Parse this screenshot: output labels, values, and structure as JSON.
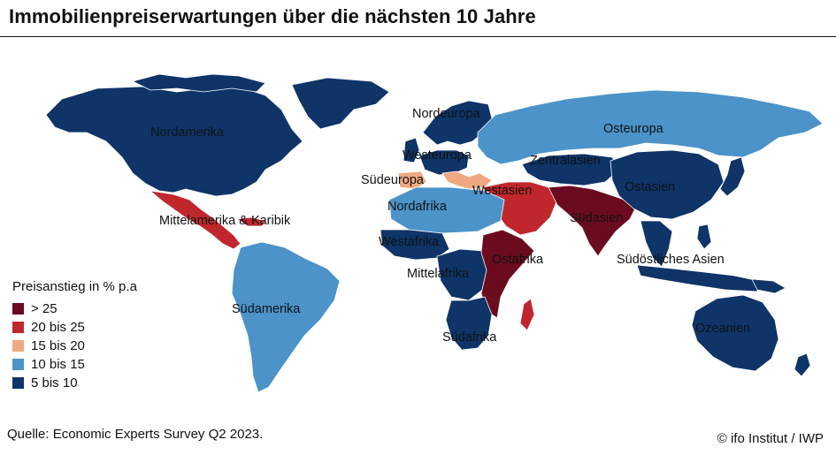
{
  "title": "Immobilienpreiserwartungen über die nächsten 10 Jahre",
  "legend": {
    "title": "Preisanstieg in % p.a",
    "items": [
      {
        "label": "> 25",
        "color": "#6b0b1f"
      },
      {
        "label": "20 bis 25",
        "color": "#c0272d"
      },
      {
        "label": "15 bis 20",
        "color": "#f0a882"
      },
      {
        "label": "10 bis 15",
        "color": "#4b93c9"
      },
      {
        "label": "5 bis 10",
        "color": "#0e3468"
      }
    ]
  },
  "regions": {
    "nordamerika": "Nordamerika",
    "mittelamerika": "Mittelamerika & Karibik",
    "suedamerika": "Südamerika",
    "nordeuropa": "Nordeuropa",
    "westeuropa": "Westeuropa",
    "suedeuropa": "Südeuropa",
    "osteuropa": "Osteuropa",
    "zentralasien": "Zentralasien",
    "westasien": "Westasien",
    "ostasien": "Ostasien",
    "suedasien": "Südasien",
    "suedostasien": "Südöstliches Asien",
    "nordafrika": "Nordafrika",
    "westafrika": "Westafrika",
    "mittelafrika": "Mittelafrika",
    "ostafrika": "Ostafrika",
    "suedafrika": "Südafrika",
    "ozeanien": "Ozeanien"
  },
  "source": "Quelle: Economic Experts Survey Q2 2023.",
  "copyright": "© ifo Institut / IWP"
}
